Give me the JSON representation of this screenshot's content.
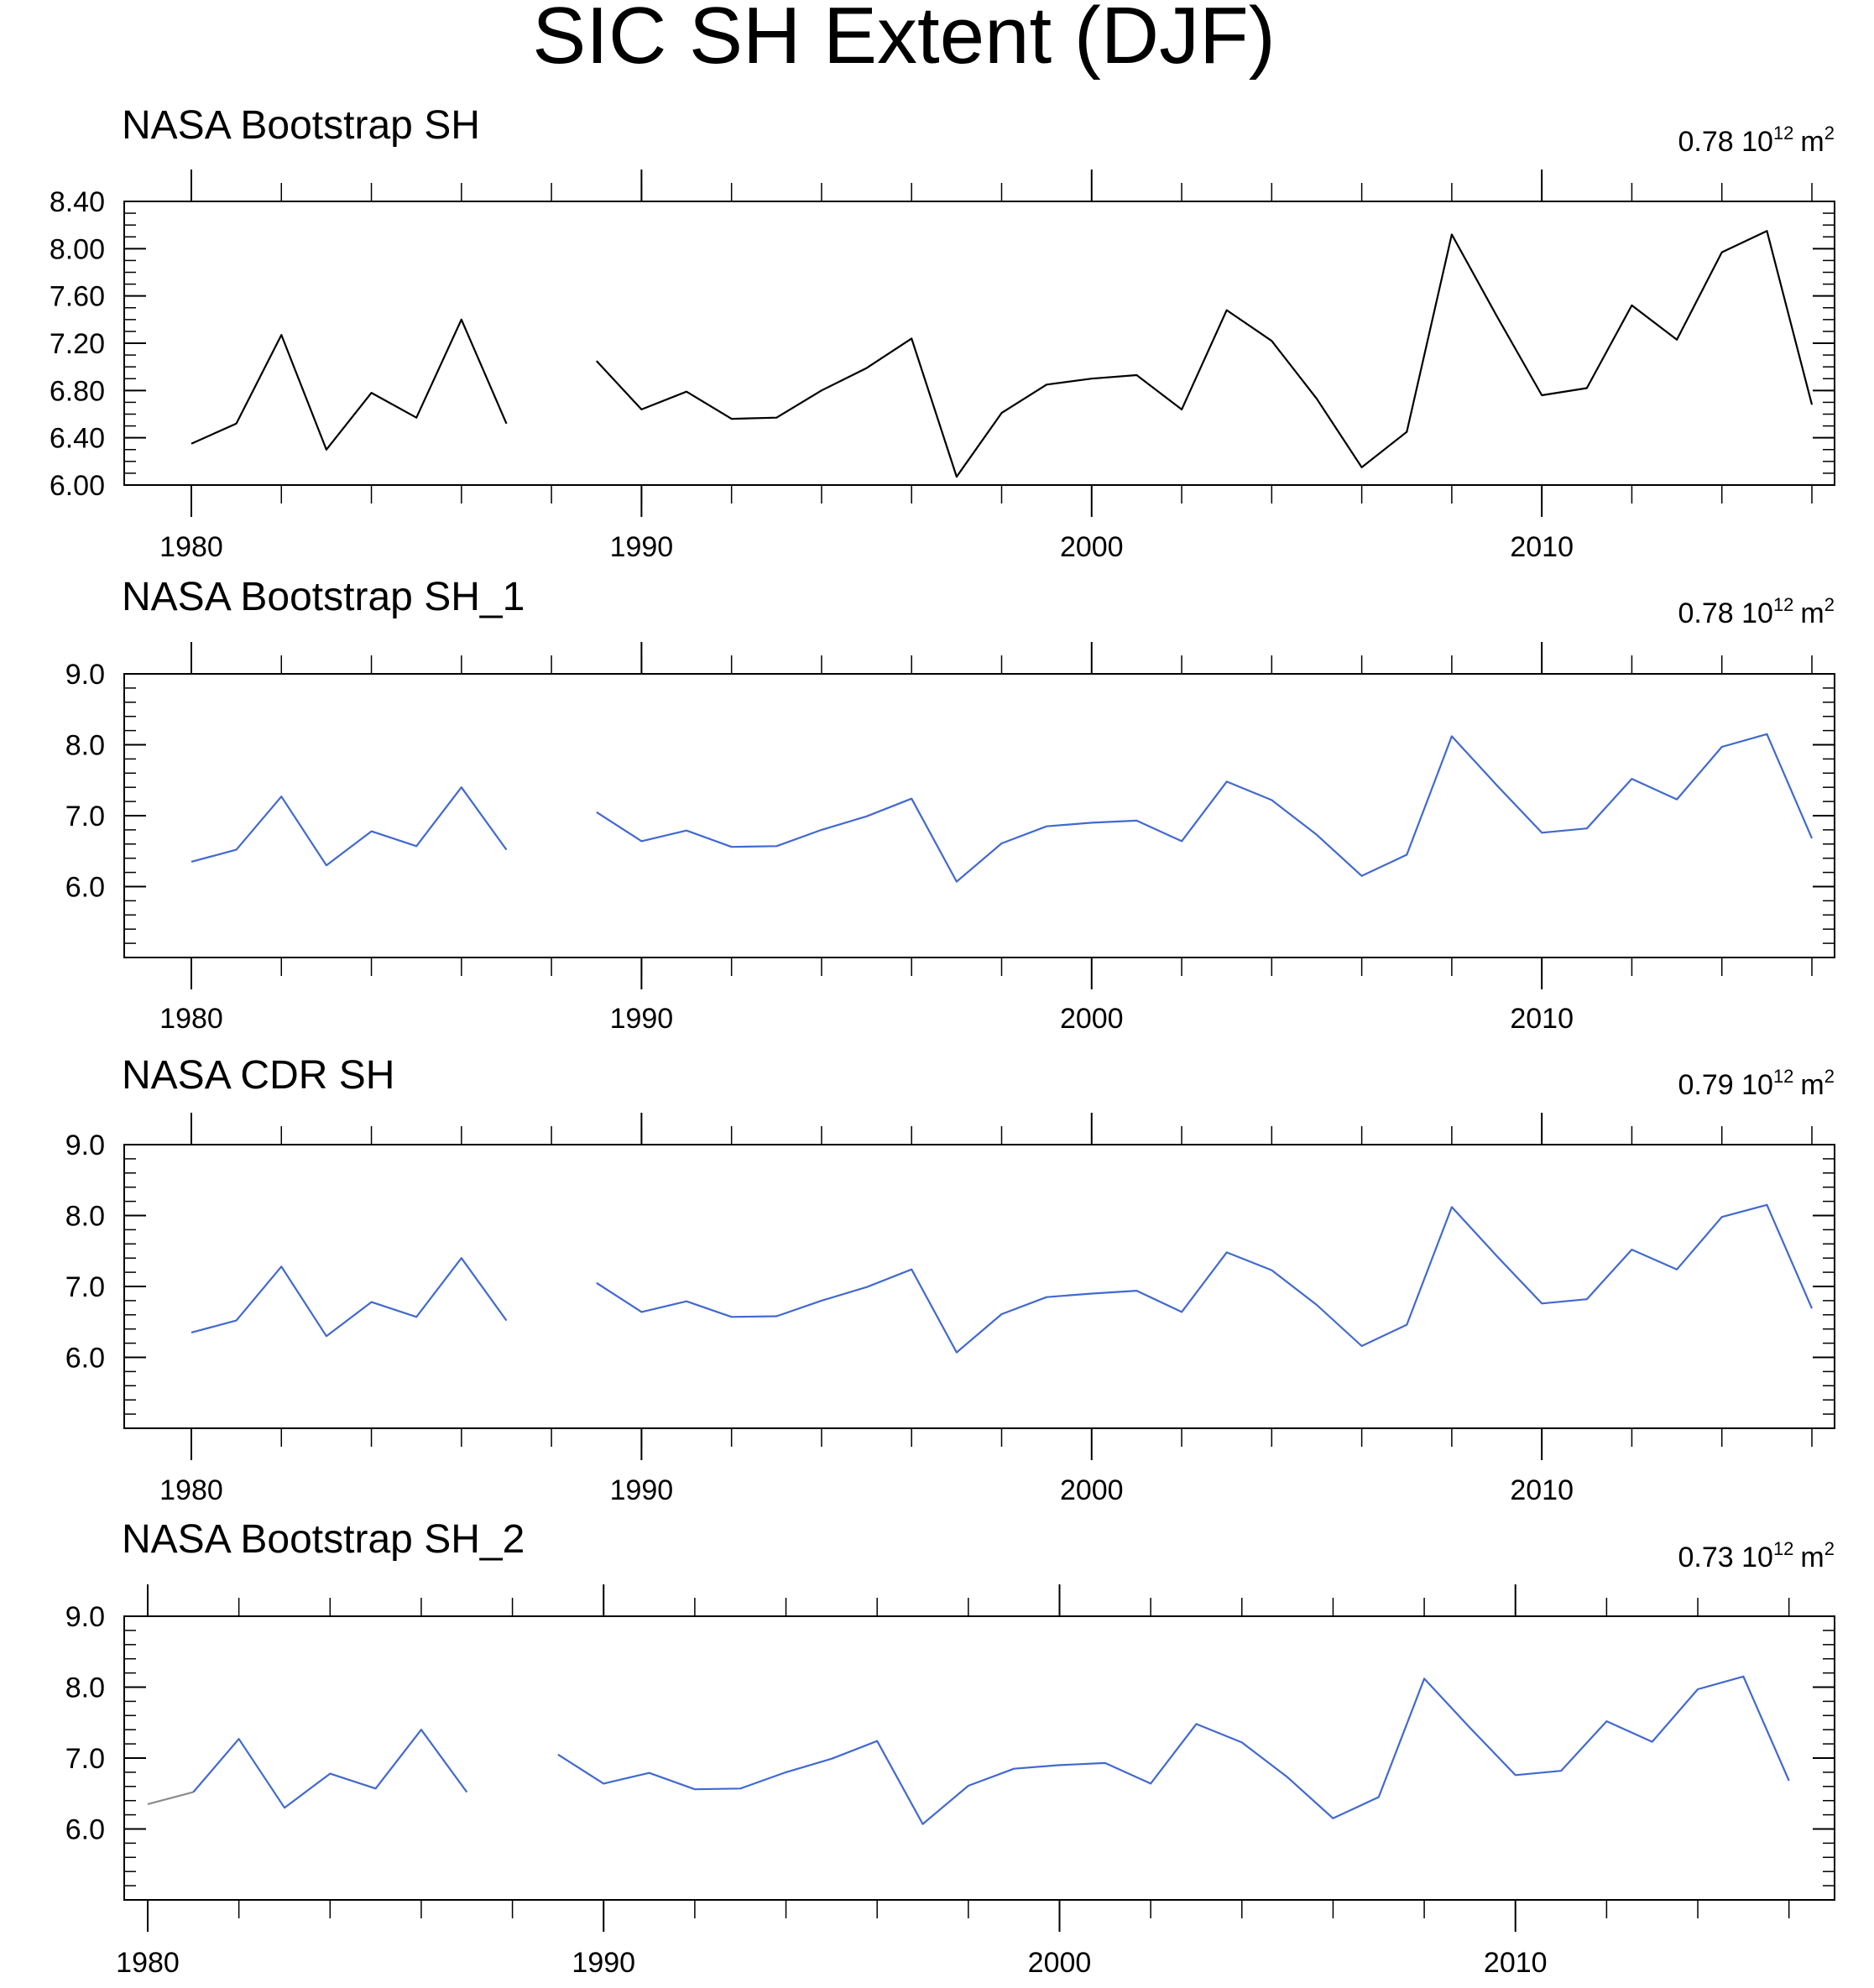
{
  "title": "SIC SH Extent (DJF)",
  "chart_data": [
    {
      "type": "line",
      "title": "NASA Bootstrap SH",
      "annotation": {
        "value": "0.78",
        "unit_base": "10",
        "unit_exp": "12",
        "unit_sym": "m",
        "unit_sym_exp": "2"
      },
      "xlim": [
        1980,
        2016
      ],
      "ylim": [
        6.0,
        8.4
      ],
      "yticks": [
        6.0,
        6.4,
        6.8,
        7.2,
        7.6,
        8.0,
        8.4
      ],
      "ytick_labels": [
        "6.00",
        "6.40",
        "6.80",
        "7.20",
        "7.60",
        "8.00",
        "8.40"
      ],
      "yminor_step": 0.1,
      "xticks": [
        1980,
        1990,
        2000,
        2010
      ],
      "xtick_labels": [
        "1980",
        "1990",
        "2000",
        "2010"
      ],
      "xminor_step": 2,
      "line_color": "#000000",
      "segments": [
        {
          "x": [
            1980,
            1981,
            1982,
            1983,
            1984,
            1985,
            1986,
            1987
          ],
          "y": [
            6.35,
            6.52,
            7.27,
            6.3,
            6.78,
            6.57,
            7.4,
            6.52
          ]
        },
        {
          "x": [
            1989,
            1990,
            1991,
            1992,
            1993,
            1994,
            1995,
            1996,
            1997,
            1998,
            1999,
            2000,
            2001,
            2002,
            2003,
            2004,
            2005,
            2006,
            2007,
            2008,
            2009,
            2010,
            2011,
            2012,
            2013,
            2014,
            2015,
            2016
          ],
          "y": [
            7.05,
            6.64,
            6.79,
            6.56,
            6.57,
            6.8,
            6.99,
            7.24,
            6.07,
            6.61,
            6.85,
            6.9,
            6.93,
            6.64,
            7.48,
            7.22,
            6.73,
            6.15,
            6.45,
            8.12,
            7.43,
            6.76,
            6.82,
            7.52,
            7.23,
            7.97,
            8.15,
            6.68
          ]
        }
      ]
    },
    {
      "type": "line",
      "title": "NASA Bootstrap SH_1",
      "annotation": {
        "value": "0.78",
        "unit_base": "10",
        "unit_exp": "12",
        "unit_sym": "m",
        "unit_sym_exp": "2"
      },
      "xlim": [
        1980,
        2016
      ],
      "ylim": [
        5.0,
        9.0
      ],
      "yticks": [
        6.0,
        7.0,
        8.0,
        9.0
      ],
      "ytick_labels": [
        "6.0",
        "7.0",
        "8.0",
        "9.0"
      ],
      "yminor_step": 0.2,
      "xticks": [
        1980,
        1990,
        2000,
        2010
      ],
      "xtick_labels": [
        "1980",
        "1990",
        "2000",
        "2010"
      ],
      "xminor_step": 2,
      "line_color": "#4169cf",
      "segments": [
        {
          "x": [
            1980,
            1981,
            1982,
            1983,
            1984,
            1985,
            1986,
            1987
          ],
          "y": [
            6.35,
            6.52,
            7.27,
            6.3,
            6.78,
            6.57,
            7.4,
            6.52
          ]
        },
        {
          "x": [
            1989,
            1990,
            1991,
            1992,
            1993,
            1994,
            1995,
            1996,
            1997,
            1998,
            1999,
            2000,
            2001,
            2002,
            2003,
            2004,
            2005,
            2006,
            2007,
            2008,
            2009,
            2010,
            2011,
            2012,
            2013,
            2014,
            2015,
            2016
          ],
          "y": [
            7.05,
            6.64,
            6.79,
            6.56,
            6.57,
            6.8,
            6.99,
            7.24,
            6.07,
            6.61,
            6.85,
            6.9,
            6.93,
            6.64,
            7.48,
            7.22,
            6.73,
            6.15,
            6.45,
            8.12,
            7.43,
            6.76,
            6.82,
            7.52,
            7.23,
            7.97,
            8.15,
            6.68
          ]
        }
      ]
    },
    {
      "type": "line",
      "title": "NASA CDR SH",
      "annotation": {
        "value": "0.79",
        "unit_base": "10",
        "unit_exp": "12",
        "unit_sym": "m",
        "unit_sym_exp": "2"
      },
      "xlim": [
        1980,
        2016
      ],
      "ylim": [
        5.0,
        9.0
      ],
      "yticks": [
        6.0,
        7.0,
        8.0,
        9.0
      ],
      "ytick_labels": [
        "6.0",
        "7.0",
        "8.0",
        "9.0"
      ],
      "yminor_step": 0.2,
      "xticks": [
        1980,
        1990,
        2000,
        2010
      ],
      "xtick_labels": [
        "1980",
        "1990",
        "2000",
        "2010"
      ],
      "xminor_step": 2,
      "line_color": "#4169cf",
      "segments": [
        {
          "x": [
            1980,
            1981,
            1982,
            1983,
            1984,
            1985,
            1986,
            1987
          ],
          "y": [
            6.35,
            6.52,
            7.28,
            6.3,
            6.78,
            6.57,
            7.4,
            6.52
          ]
        },
        {
          "x": [
            1989,
            1990,
            1991,
            1992,
            1993,
            1994,
            1995,
            1996,
            1997,
            1998,
            1999,
            2000,
            2001,
            2002,
            2003,
            2004,
            2005,
            2006,
            2007,
            2008,
            2009,
            2010,
            2011,
            2012,
            2013,
            2014,
            2015,
            2016
          ],
          "y": [
            7.05,
            6.64,
            6.79,
            6.57,
            6.58,
            6.8,
            6.99,
            7.24,
            6.07,
            6.61,
            6.85,
            6.9,
            6.94,
            6.64,
            7.48,
            7.23,
            6.74,
            6.16,
            6.46,
            8.12,
            7.43,
            6.76,
            6.82,
            7.52,
            7.24,
            7.98,
            8.15,
            6.69
          ]
        }
      ]
    },
    {
      "type": "line",
      "title": "NASA Bootstrap SH_2",
      "annotation": {
        "value": "0.73",
        "unit_base": "10",
        "unit_exp": "12",
        "unit_sym": "m",
        "unit_sym_exp": "2"
      },
      "xlim": [
        1980,
        2017
      ],
      "ylim": [
        5.0,
        9.0
      ],
      "yticks": [
        6.0,
        7.0,
        8.0,
        9.0
      ],
      "ytick_labels": [
        "6.0",
        "7.0",
        "8.0",
        "9.0"
      ],
      "yminor_step": 0.2,
      "xticks": [
        1980,
        1990,
        2000,
        2010
      ],
      "xtick_labels": [
        "1980",
        "1990",
        "2000",
        "2010"
      ],
      "xminor_step": 2,
      "line_color": "#4169cf",
      "first_segment_color": "#8c8c8c",
      "segments": [
        {
          "x": [
            1980,
            1981
          ],
          "y": [
            6.35,
            6.52
          ],
          "color": "#8c8c8c"
        },
        {
          "x": [
            1981,
            1982,
            1983,
            1984,
            1985,
            1986,
            1987
          ],
          "y": [
            6.52,
            7.27,
            6.3,
            6.78,
            6.57,
            7.4,
            6.52
          ]
        },
        {
          "x": [
            1989,
            1990,
            1991,
            1992,
            1993,
            1994,
            1995,
            1996,
            1997,
            1998,
            1999,
            2000,
            2001,
            2002,
            2003,
            2004,
            2005,
            2006,
            2007,
            2008,
            2009,
            2010,
            2011,
            2012,
            2013,
            2014,
            2015,
            2016
          ],
          "y": [
            7.05,
            6.64,
            6.79,
            6.56,
            6.57,
            6.8,
            6.99,
            7.24,
            6.07,
            6.61,
            6.85,
            6.9,
            6.93,
            6.64,
            7.48,
            7.22,
            6.73,
            6.15,
            6.45,
            8.12,
            7.43,
            6.76,
            6.82,
            7.52,
            7.23,
            7.97,
            8.15,
            6.68
          ]
        }
      ]
    }
  ]
}
